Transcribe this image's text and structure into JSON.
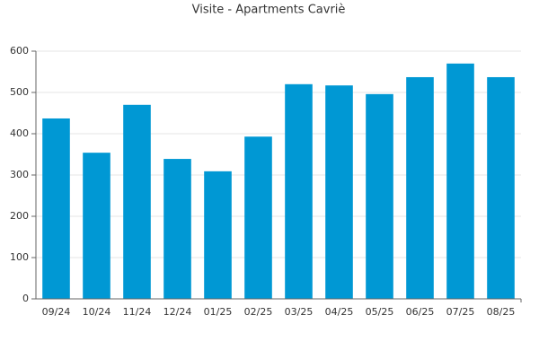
{
  "chart_data": {
    "type": "bar",
    "title": "Visite - Apartments Cavriè",
    "categories": [
      "09/24",
      "10/24",
      "11/24",
      "12/24",
      "01/25",
      "02/25",
      "03/25",
      "04/25",
      "05/25",
      "06/25",
      "07/25",
      "08/25"
    ],
    "values": [
      437,
      354,
      470,
      339,
      309,
      393,
      520,
      517,
      496,
      537,
      570,
      537
    ],
    "color": "#0098d4",
    "ylim": [
      0,
      600
    ],
    "yticks": [
      0,
      100,
      200,
      300,
      400,
      500,
      600
    ],
    "grid": true
  }
}
